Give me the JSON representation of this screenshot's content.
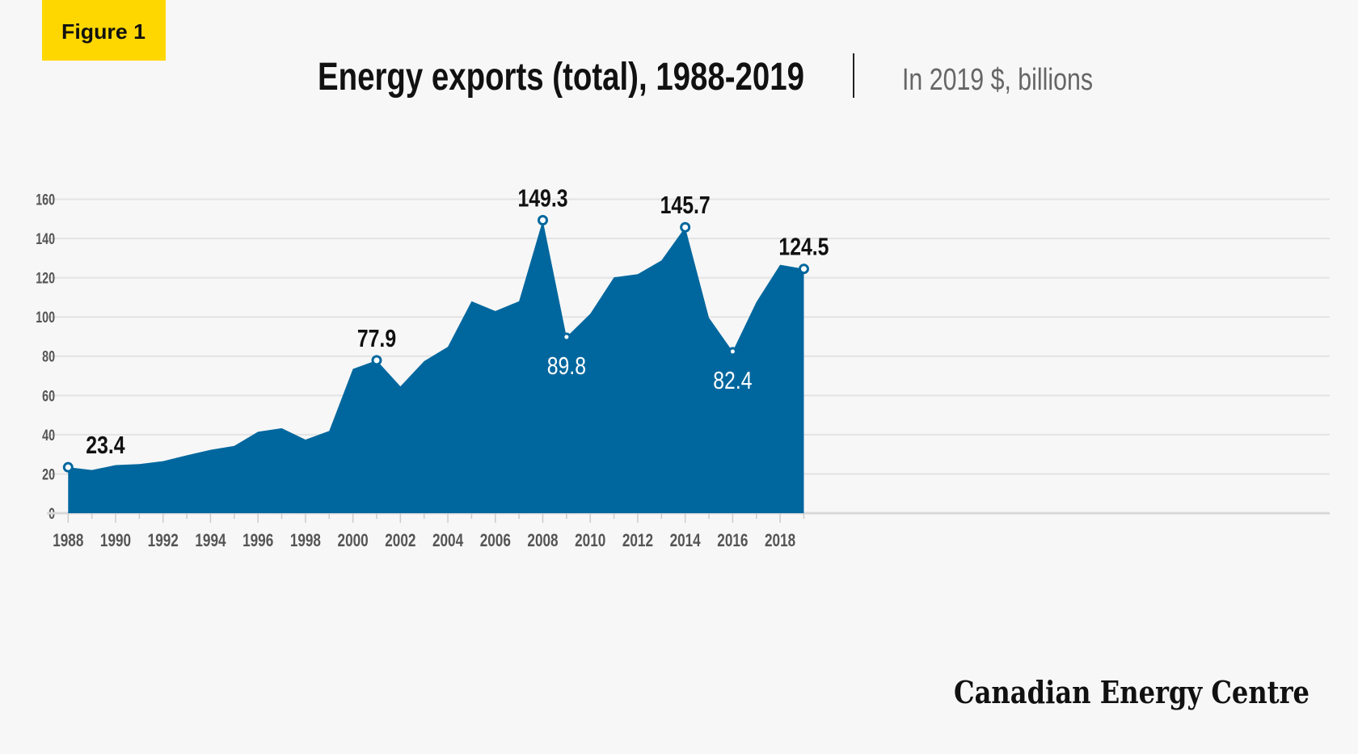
{
  "badge": {
    "label": "Figure 1",
    "color": "#ffd700"
  },
  "header": {
    "title": "Energy exports (total), 1988-2019",
    "subtitle": "In 2019 $, billions"
  },
  "logo": {
    "text": "Canadian Energy Centre"
  },
  "chart_data": {
    "type": "area",
    "title": "Energy exports (total), 1988-2019",
    "subtitle": "In 2019 $, billions",
    "xlabel": "",
    "ylabel": "",
    "ylim": [
      0,
      160
    ],
    "xlim": [
      1988,
      2019
    ],
    "grid": true,
    "fill_color": "#00679e",
    "y_ticks": [
      0,
      20,
      40,
      60,
      80,
      100,
      120,
      140,
      160
    ],
    "x_tick_labels": [
      1988,
      1990,
      1992,
      1994,
      1996,
      1998,
      2000,
      2002,
      2004,
      2006,
      2008,
      2010,
      2012,
      2014,
      2016,
      2018
    ],
    "x": [
      1988,
      1989,
      1990,
      1991,
      1992,
      1993,
      1994,
      1995,
      1996,
      1997,
      1998,
      1999,
      2000,
      2001,
      2002,
      2003,
      2004,
      2005,
      2006,
      2007,
      2008,
      2009,
      2010,
      2011,
      2012,
      2013,
      2014,
      2015,
      2016,
      2017,
      2018,
      2019
    ],
    "values": [
      23.4,
      22,
      24.5,
      25,
      26.5,
      29.5,
      32.3,
      34.3,
      41.5,
      43.3,
      37.5,
      41.9,
      73.5,
      77.9,
      64.6,
      77.5,
      84.8,
      108,
      103,
      108,
      149.3,
      89.8,
      101.6,
      120.2,
      121.8,
      128.8,
      145.7,
      99.6,
      82.4,
      107.6,
      126.6,
      124.5
    ],
    "annotations": [
      {
        "year": 1988,
        "label": "23.4",
        "position": "above"
      },
      {
        "year": 2001,
        "label": "77.9",
        "position": "above"
      },
      {
        "year": 2008,
        "label": "149.3",
        "position": "above"
      },
      {
        "year": 2009,
        "label": "89.8",
        "position": "below"
      },
      {
        "year": 2014,
        "label": "145.7",
        "position": "above"
      },
      {
        "year": 2016,
        "label": "82.4",
        "position": "below"
      },
      {
        "year": 2019,
        "label": "124.5",
        "position": "above"
      }
    ]
  }
}
